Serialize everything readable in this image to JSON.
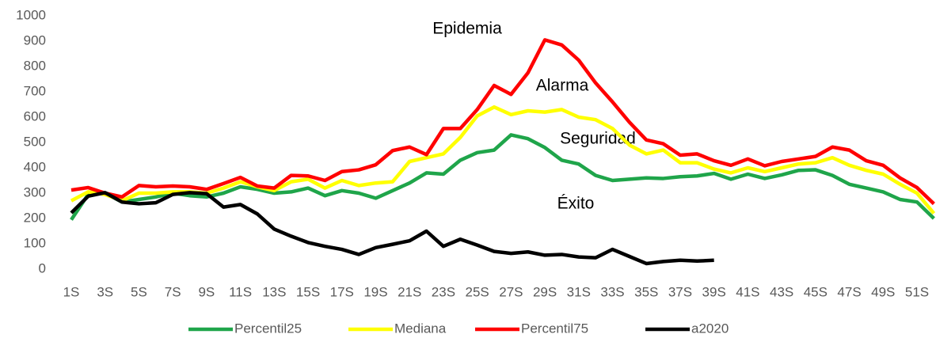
{
  "chart_data": {
    "type": "line",
    "categories": [
      "1S",
      null,
      "3S",
      null,
      "5S",
      null,
      "7S",
      null,
      "9S",
      null,
      "11S",
      null,
      "13S",
      null,
      "15S",
      null,
      "17S",
      null,
      "19S",
      null,
      "21S",
      null,
      "23S",
      null,
      "25S",
      null,
      "27S",
      null,
      "29S",
      null,
      "31S",
      null,
      "33S",
      null,
      "35S",
      null,
      "37S",
      null,
      "39S",
      null,
      "41S",
      null,
      "43S",
      null,
      "45S",
      null,
      "47S",
      null,
      "49S",
      null,
      "51S",
      null
    ],
    "series": [
      {
        "name": "Percentil25",
        "color": "#1fa54a",
        "values": [
          195,
          295,
          300,
          265,
          275,
          285,
          300,
          290,
          285,
          300,
          325,
          315,
          300,
          305,
          320,
          290,
          310,
          300,
          280,
          310,
          340,
          380,
          375,
          430,
          460,
          470,
          530,
          515,
          480,
          430,
          415,
          370,
          350,
          355,
          360,
          358,
          365,
          368,
          378,
          355,
          375,
          358,
          372,
          390,
          392,
          370,
          335,
          320,
          305,
          275,
          265,
          200
        ]
      },
      {
        "name": "Mediana",
        "color": "#ffff00",
        "values": [
          270,
          305,
          295,
          270,
          300,
          300,
          305,
          305,
          300,
          320,
          345,
          325,
          310,
          345,
          355,
          320,
          350,
          330,
          340,
          345,
          425,
          440,
          455,
          520,
          605,
          640,
          610,
          625,
          620,
          630,
          600,
          590,
          555,
          490,
          455,
          470,
          420,
          420,
          395,
          380,
          400,
          385,
          400,
          415,
          420,
          440,
          410,
          390,
          375,
          335,
          300,
          220
        ]
      },
      {
        "name": "Percentil75",
        "color": "#ff0000",
        "values": [
          312,
          322,
          300,
          285,
          330,
          325,
          328,
          325,
          315,
          338,
          362,
          328,
          320,
          370,
          368,
          350,
          385,
          392,
          412,
          468,
          482,
          452,
          555,
          555,
          630,
          725,
          690,
          775,
          905,
          885,
          825,
          735,
          660,
          580,
          510,
          495,
          450,
          455,
          428,
          410,
          435,
          408,
          425,
          435,
          445,
          482,
          470,
          428,
          410,
          360,
          322,
          258
        ]
      },
      {
        "name": "a2020",
        "color": "#000000",
        "values": [
          222,
          288,
          302,
          265,
          258,
          262,
          295,
          302,
          298,
          245,
          255,
          218,
          158,
          130,
          105,
          90,
          78,
          58,
          85,
          98,
          112,
          150,
          90,
          118,
          95,
          70,
          62,
          68,
          55,
          58,
          48,
          45,
          78,
          50,
          22,
          30,
          35,
          32,
          35,
          null,
          null,
          null,
          null,
          null,
          null,
          null,
          null,
          null,
          null,
          null,
          null,
          null
        ]
      }
    ],
    "annotations": [
      "Epidemia",
      "Alarma",
      "Seguridad",
      "Éxito"
    ],
    "ylim": [
      0,
      1000
    ],
    "yticks": [
      0,
      100,
      200,
      300,
      400,
      500,
      600,
      700,
      800,
      900,
      1000
    ],
    "grid": false,
    "legend": "bottom"
  }
}
